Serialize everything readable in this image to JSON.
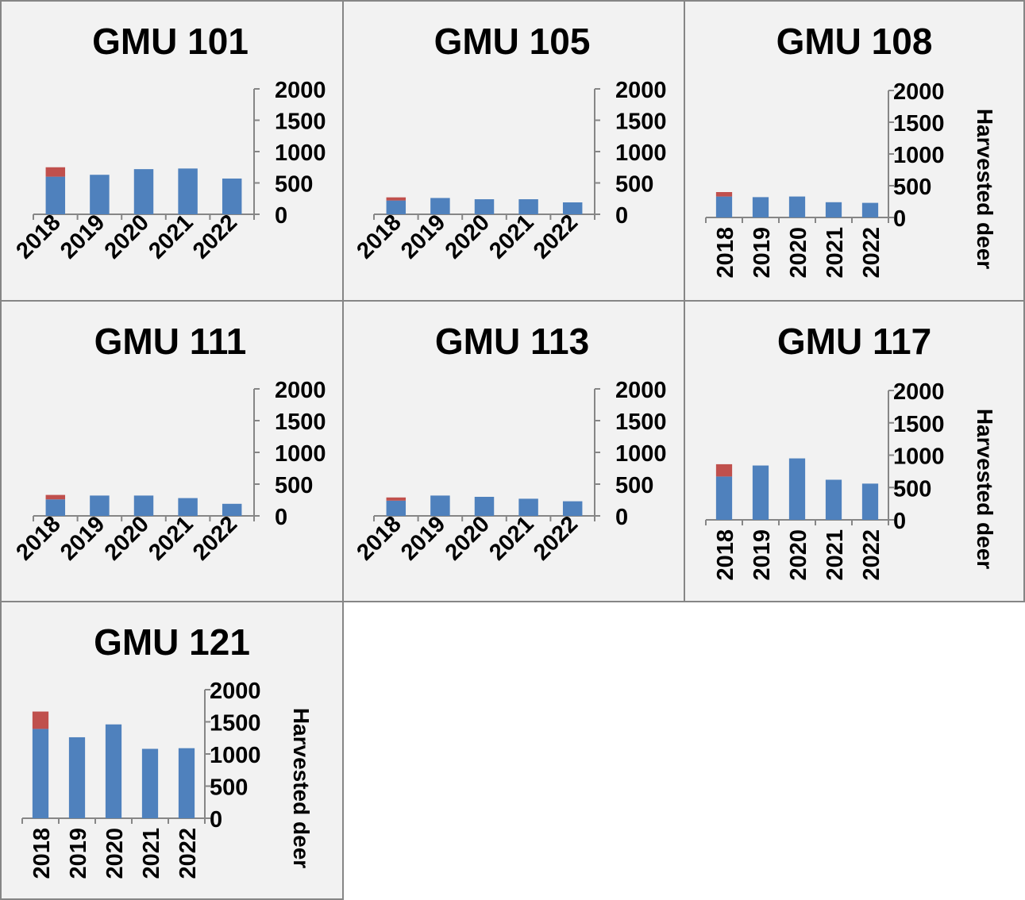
{
  "colors": {
    "blue": "#4f81bd",
    "red": "#c0504d",
    "axis": "#868686",
    "panel_bg": "#f2f2f2"
  },
  "chart_data": [
    {
      "type": "bar",
      "stacked": true,
      "title": "GMU 101",
      "categories": [
        "2018",
        "2019",
        "2020",
        "2021",
        "2022"
      ],
      "yticks": [
        "0",
        "500",
        "1000",
        "1500",
        "2000"
      ],
      "ylim": [
        0,
        2000
      ],
      "ylabel": "",
      "xlabel_rotation": "diagonal",
      "series": [
        {
          "values": [
            600,
            630,
            720,
            730,
            570
          ],
          "color": "#4f81bd"
        },
        {
          "values": [
            150,
            0,
            0,
            0,
            0
          ],
          "color": "#c0504d"
        }
      ]
    },
    {
      "type": "bar",
      "stacked": true,
      "title": "GMU 105",
      "categories": [
        "2018",
        "2019",
        "2020",
        "2021",
        "2022"
      ],
      "yticks": [
        "0",
        "500",
        "1000",
        "1500",
        "2000"
      ],
      "ylim": [
        0,
        2000
      ],
      "ylabel": "",
      "xlabel_rotation": "diagonal",
      "series": [
        {
          "values": [
            220,
            260,
            240,
            240,
            190
          ],
          "color": "#4f81bd"
        },
        {
          "values": [
            50,
            0,
            0,
            0,
            0
          ],
          "color": "#c0504d"
        }
      ]
    },
    {
      "type": "bar",
      "stacked": true,
      "title": "GMU 108",
      "categories": [
        "2018",
        "2019",
        "2020",
        "2021",
        "2022"
      ],
      "yticks": [
        "0",
        "500",
        "1000",
        "1500",
        "2000"
      ],
      "ylim": [
        0,
        2000
      ],
      "ylabel": "Harvested deer",
      "xlabel_rotation": "vertical",
      "series": [
        {
          "values": [
            330,
            320,
            330,
            240,
            230
          ],
          "color": "#4f81bd"
        },
        {
          "values": [
            70,
            0,
            0,
            0,
            0
          ],
          "color": "#c0504d"
        }
      ]
    },
    {
      "type": "bar",
      "stacked": true,
      "title": "GMU 111",
      "categories": [
        "2018",
        "2019",
        "2020",
        "2021",
        "2022"
      ],
      "yticks": [
        "0",
        "500",
        "1000",
        "1500",
        "2000"
      ],
      "ylim": [
        0,
        2000
      ],
      "ylabel": "",
      "xlabel_rotation": "diagonal",
      "series": [
        {
          "values": [
            260,
            320,
            320,
            280,
            190
          ],
          "color": "#4f81bd"
        },
        {
          "values": [
            70,
            0,
            0,
            0,
            0
          ],
          "color": "#c0504d"
        }
      ]
    },
    {
      "type": "bar",
      "stacked": true,
      "title": "GMU 113",
      "categories": [
        "2018",
        "2019",
        "2020",
        "2021",
        "2022"
      ],
      "yticks": [
        "0",
        "500",
        "1000",
        "1500",
        "2000"
      ],
      "ylim": [
        0,
        2000
      ],
      "ylabel": "",
      "xlabel_rotation": "diagonal",
      "series": [
        {
          "values": [
            240,
            320,
            300,
            270,
            230
          ],
          "color": "#4f81bd"
        },
        {
          "values": [
            50,
            0,
            0,
            0,
            0
          ],
          "color": "#c0504d"
        }
      ]
    },
    {
      "type": "bar",
      "stacked": true,
      "title": "GMU 117",
      "categories": [
        "2018",
        "2019",
        "2020",
        "2021",
        "2022"
      ],
      "yticks": [
        "0",
        "500",
        "1000",
        "1500",
        "2000"
      ],
      "ylim": [
        0,
        2000
      ],
      "ylabel": "Harvested deer",
      "xlabel_rotation": "vertical",
      "series": [
        {
          "values": [
            670,
            840,
            950,
            620,
            560
          ],
          "color": "#4f81bd"
        },
        {
          "values": [
            190,
            0,
            0,
            0,
            0
          ],
          "color": "#c0504d"
        }
      ]
    },
    {
      "type": "bar",
      "stacked": true,
      "title": "GMU 121",
      "categories": [
        "2018",
        "2019",
        "2020",
        "2021",
        "2022"
      ],
      "yticks": [
        "0",
        "500",
        "1000",
        "1500",
        "2000"
      ],
      "ylim": [
        0,
        2000
      ],
      "ylabel": "Harvested deer",
      "xlabel_rotation": "vertical",
      "series": [
        {
          "values": [
            1390,
            1260,
            1460,
            1080,
            1090
          ],
          "color": "#4f81bd"
        },
        {
          "values": [
            270,
            0,
            0,
            0,
            0
          ],
          "color": "#c0504d"
        }
      ]
    }
  ]
}
